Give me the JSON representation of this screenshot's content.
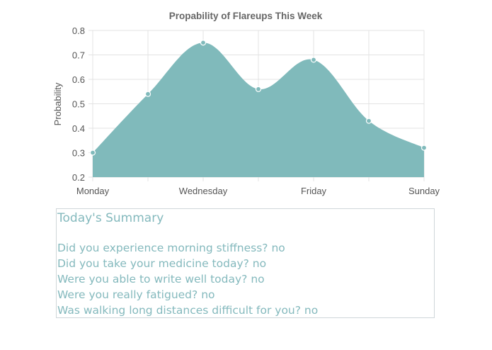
{
  "chart_data": {
    "type": "area",
    "title": "Propability of Flareups This Week",
    "ylabel": "Probability",
    "xlabel": "",
    "categories": [
      "Monday",
      "",
      "Wednesday",
      "",
      "Friday",
      "",
      "Sunday"
    ],
    "x_tick_labels": [
      "Monday",
      "Wednesday",
      "Friday",
      "Sunday"
    ],
    "y_ticks": [
      "0.8",
      "0.7",
      "0.6",
      "0.5",
      "0.4",
      "0.3",
      "0.2"
    ],
    "values": [
      0.3,
      0.54,
      0.75,
      0.56,
      0.68,
      0.43,
      0.32
    ],
    "ylim": [
      0.2,
      0.8
    ],
    "grid": true,
    "legend": "none",
    "fill_color": "#80babb",
    "point_color": "#80babb"
  },
  "summary": {
    "title": "Today's Summary",
    "questions": [
      {
        "question": "Did you experience morning stiffness?",
        "answer": "no"
      },
      {
        "question": "Did you take your medicine today?",
        "answer": "no"
      },
      {
        "question": "Were you able to write well today?",
        "answer": "no"
      },
      {
        "question": "Were you really fatigued?",
        "answer": "no"
      },
      {
        "question": "Was walking long distances difficult for you?",
        "answer": "no"
      }
    ]
  }
}
